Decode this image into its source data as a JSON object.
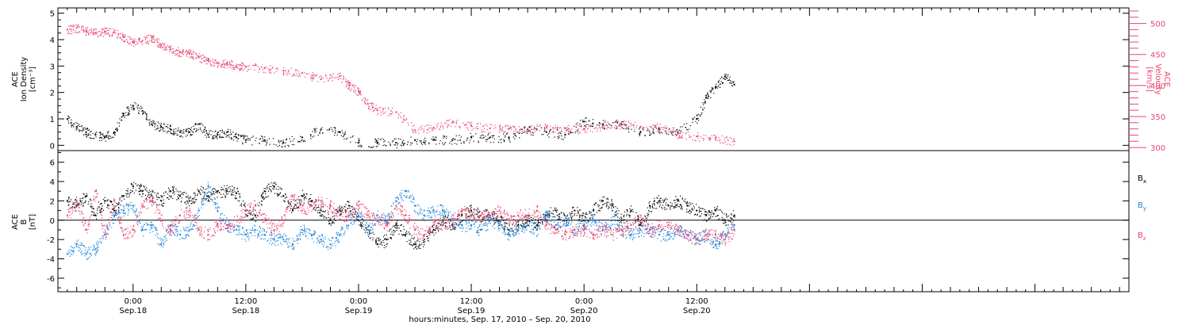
{
  "colors": {
    "black": "#000000",
    "pink": "#e8456f",
    "blue": "#1a82db",
    "background": "#ffffff"
  },
  "xaxis": {
    "title": "hours:minutes, Sep. 17, 2010 – Sep. 20, 2010",
    "range_hours": [
      -8,
      106
    ],
    "ticks": [
      {
        "hour": 0,
        "time": "0:00",
        "date": "Sep.18"
      },
      {
        "hour": 12,
        "time": "12:00",
        "date": "Sep.18"
      },
      {
        "hour": 24,
        "time": "0:00",
        "date": "Sep.19"
      },
      {
        "hour": 36,
        "time": "12:00",
        "date": "Sep.19"
      },
      {
        "hour": 48,
        "time": "0:00",
        "date": "Sep.20"
      },
      {
        "hour": 60,
        "time": "12:00",
        "date": "Sep.20"
      }
    ]
  },
  "chart_data": [
    {
      "type": "scatter",
      "panel": "top",
      "ylabel_left": [
        "ACE",
        "Ion Density",
        "[cm⁻³]"
      ],
      "ylabel_right": [
        "ACE",
        "Velocity",
        "[km/s]"
      ],
      "ylim_left": [
        -0.2,
        5.2
      ],
      "yticks_left": [
        0,
        1,
        2,
        3,
        4,
        5
      ],
      "ylim_right": [
        295,
        525
      ],
      "yticks_right": [
        300,
        350,
        400,
        450,
        500
      ],
      "series": [
        {
          "axis": "left",
          "color": "#000000",
          "x": [
            -7,
            -6,
            -5,
            -4,
            -3,
            -2,
            -1,
            0,
            1,
            2,
            3,
            4,
            5,
            6,
            7,
            8,
            9,
            10,
            11,
            12,
            14,
            16,
            18,
            20,
            22,
            24,
            26,
            28,
            30,
            32,
            34,
            36,
            38,
            40,
            42,
            44,
            46,
            48,
            50,
            52,
            54,
            56,
            58,
            60,
            61,
            62,
            63,
            64
          ],
          "values": [
            1.0,
            0.7,
            0.5,
            0.4,
            0.3,
            0.5,
            1.2,
            1.5,
            1.3,
            0.8,
            0.7,
            0.6,
            0.5,
            0.5,
            0.8,
            0.4,
            0.4,
            0.5,
            0.3,
            0.2,
            0.2,
            0.1,
            0.3,
            0.6,
            0.5,
            0.1,
            0.1,
            0.1,
            0.2,
            0.2,
            0.2,
            0.3,
            0.3,
            0.3,
            0.6,
            0.5,
            0.4,
            0.9,
            0.8,
            0.8,
            0.5,
            0.6,
            0.5,
            1.0,
            1.8,
            2.2,
            2.6,
            2.3
          ]
        },
        {
          "axis": "right",
          "color": "#e8456f",
          "x": [
            -7,
            -6,
            -5,
            -4,
            -3,
            -2,
            -1,
            0,
            1,
            2,
            3,
            4,
            5,
            6,
            7,
            8,
            9,
            10,
            11,
            12,
            14,
            16,
            18,
            20,
            22,
            23,
            24,
            25,
            26,
            28,
            30,
            32,
            34,
            36,
            38,
            40,
            42,
            44,
            46,
            48,
            50,
            52,
            54,
            56,
            58,
            60,
            62,
            64
          ],
          "values": [
            490,
            493,
            488,
            485,
            487,
            486,
            478,
            470,
            472,
            477,
            465,
            458,
            454,
            452,
            446,
            440,
            436,
            436,
            431,
            430,
            428,
            424,
            420,
            410,
            415,
            400,
            390,
            370,
            360,
            357,
            328,
            332,
            340,
            335,
            331,
            330,
            330,
            333,
            331,
            330,
            335,
            338,
            333,
            332,
            322,
            318,
            315,
            310
          ]
        }
      ]
    },
    {
      "type": "scatter",
      "panel": "bottom",
      "ylabel": [
        "ACE",
        "B",
        "[nT]"
      ],
      "ylim": [
        -7.4,
        7.2
      ],
      "yticks": [
        -6,
        -4,
        -2,
        0,
        2,
        4,
        6
      ],
      "zero_line": true,
      "series": [
        {
          "name": "Bx",
          "color": "#000000",
          "x": [
            -7,
            -6,
            -5,
            -4,
            -3,
            -2,
            -1,
            0,
            1,
            2,
            3,
            4,
            5,
            6,
            7,
            8,
            9,
            10,
            11,
            12,
            13,
            14,
            15,
            16,
            17,
            18,
            19,
            20,
            21,
            22,
            23,
            24,
            25,
            26,
            27,
            28,
            29,
            30,
            31,
            32,
            33,
            34,
            35,
            36,
            37,
            38,
            39,
            40,
            41,
            42,
            43,
            44,
            45,
            46,
            47,
            48,
            49,
            50,
            51,
            52,
            53,
            54,
            55,
            56,
            57,
            58,
            59,
            60,
            61,
            62,
            63,
            64
          ],
          "values": [
            2.0,
            1.5,
            2.5,
            0.5,
            2.0,
            1.0,
            2.5,
            3.5,
            3.0,
            2.5,
            2.0,
            3.0,
            2.5,
            2.0,
            3.0,
            2.5,
            3.0,
            3.0,
            2.8,
            1.0,
            0.5,
            3.0,
            3.5,
            2.5,
            1.0,
            2.5,
            2.0,
            1.0,
            0.0,
            1.0,
            1.5,
            0.0,
            -1.0,
            -2.5,
            -2.0,
            -0.5,
            -1.5,
            -2.5,
            -2.0,
            -1.0,
            0.0,
            -0.5,
            0.5,
            1.0,
            0.5,
            0.5,
            0.0,
            -1.0,
            -0.5,
            0.0,
            -0.5,
            0.5,
            1.0,
            0.0,
            1.0,
            0.0,
            1.0,
            2.0,
            1.5,
            0.0,
            1.0,
            -0.5,
            1.5,
            2.0,
            1.5,
            2.0,
            1.5,
            1.0,
            0.5,
            1.0,
            0.0,
            0.5
          ]
        },
        {
          "name": "By",
          "color": "#1a82db",
          "x": [
            -7,
            -6,
            -5,
            -4,
            -3,
            -2,
            -1,
            0,
            1,
            2,
            3,
            4,
            5,
            6,
            7,
            8,
            9,
            10,
            11,
            12,
            13,
            14,
            15,
            16,
            17,
            18,
            19,
            20,
            21,
            22,
            23,
            24,
            25,
            26,
            27,
            28,
            29,
            30,
            31,
            32,
            33,
            34,
            35,
            36,
            37,
            38,
            39,
            40,
            41,
            42,
            43,
            44,
            45,
            46,
            47,
            48,
            49,
            50,
            51,
            52,
            53,
            54,
            55,
            56,
            57,
            58,
            59,
            60,
            61,
            62,
            63,
            64
          ],
          "values": [
            -3.5,
            -2.5,
            -3.5,
            -3.0,
            -1.5,
            0.5,
            1.0,
            1.5,
            -1.0,
            -0.5,
            -2.5,
            -0.5,
            -1.5,
            -1.0,
            1.0,
            3.5,
            1.0,
            -0.5,
            -1.0,
            -1.5,
            -1.0,
            -1.5,
            -2.0,
            -2.0,
            -2.5,
            -1.0,
            -1.5,
            -2.0,
            -2.5,
            -1.5,
            0.0,
            0.5,
            -1.0,
            0.5,
            0.0,
            2.0,
            3.0,
            1.5,
            0.5,
            1.0,
            1.0,
            0.0,
            -0.5,
            -0.5,
            -1.0,
            0.0,
            -0.5,
            -1.5,
            -1.0,
            -0.5,
            -1.0,
            0.5,
            -0.5,
            0.0,
            -1.0,
            -0.5,
            0.0,
            -1.0,
            0.0,
            -1.0,
            -1.5,
            -1.0,
            -1.0,
            -1.5,
            -1.5,
            -1.0,
            -1.5,
            -2.0,
            -1.5,
            -2.5,
            -1.5,
            -0.5
          ]
        },
        {
          "name": "Bz",
          "color": "#e8456f",
          "x": [
            -7,
            -6,
            -5,
            -4,
            -3,
            -2,
            -1,
            0,
            1,
            2,
            3,
            4,
            5,
            6,
            7,
            8,
            9,
            10,
            11,
            12,
            13,
            14,
            15,
            16,
            17,
            18,
            19,
            20,
            21,
            22,
            23,
            24,
            25,
            26,
            27,
            28,
            29,
            30,
            31,
            32,
            33,
            34,
            35,
            36,
            37,
            38,
            39,
            40,
            41,
            42,
            43,
            44,
            45,
            46,
            47,
            48,
            49,
            50,
            51,
            52,
            53,
            54,
            55,
            56,
            57,
            58,
            59,
            60,
            61,
            62,
            63,
            64
          ],
          "values": [
            0.5,
            2.0,
            -1.0,
            3.0,
            -1.5,
            2.0,
            -1.5,
            -1.0,
            1.5,
            2.0,
            0.0,
            -1.0,
            0.5,
            1.0,
            -1.0,
            -1.5,
            -0.5,
            -0.5,
            0.0,
            1.0,
            1.5,
            0.0,
            -1.0,
            0.0,
            2.5,
            1.0,
            1.5,
            2.0,
            1.5,
            0.5,
            0.5,
            1.5,
            0.5,
            0.0,
            -0.5,
            1.5,
            0.5,
            -1.0,
            -1.5,
            -0.5,
            -0.5,
            0.0,
            1.0,
            0.5,
            0.5,
            0.5,
            1.0,
            0.0,
            0.5,
            0.5,
            1.0,
            -0.5,
            -1.0,
            -1.5,
            -1.0,
            -1.0,
            -1.5,
            -1.0,
            -1.5,
            -1.0,
            -0.5,
            0.0,
            -1.0,
            -0.5,
            -0.5,
            -1.0,
            -1.5,
            -2.0,
            -1.5,
            -1.5,
            -2.0,
            -1.0
          ]
        }
      ]
    }
  ]
}
